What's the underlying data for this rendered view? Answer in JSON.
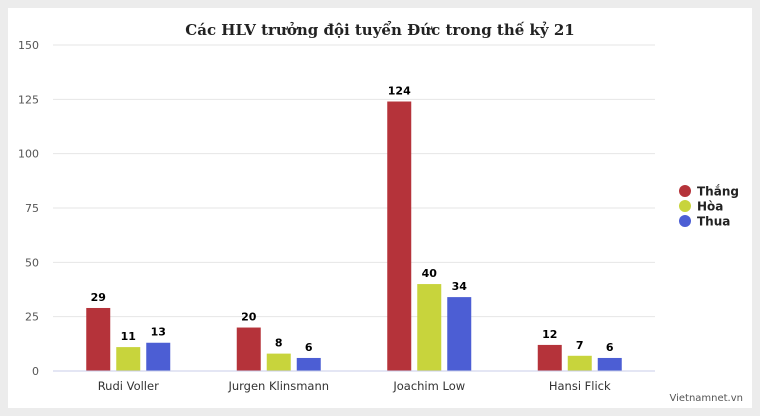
{
  "chart_data": {
    "type": "bar",
    "title": "Các HLV trưởng đội tuyển Đức trong thế kỷ 21",
    "categories": [
      "Rudi Voller",
      "Jurgen Klinsmann",
      "Joachim Low",
      "Hansi Flick"
    ],
    "series": [
      {
        "name": "Thắng",
        "color": "#b5333a",
        "values": [
          29,
          20,
          124,
          12
        ]
      },
      {
        "name": "Hòa",
        "color": "#c8d43c",
        "values": [
          11,
          8,
          40,
          7
        ]
      },
      {
        "name": "Thua",
        "color": "#4c5ed4",
        "values": [
          13,
          6,
          34,
          6
        ]
      }
    ],
    "yticks": [
      0,
      25,
      50,
      75,
      100,
      125,
      150
    ],
    "ylim": [
      0,
      150
    ],
    "grid": true,
    "legend_position": "right"
  },
  "watermark": "Vietnamnet.vn"
}
